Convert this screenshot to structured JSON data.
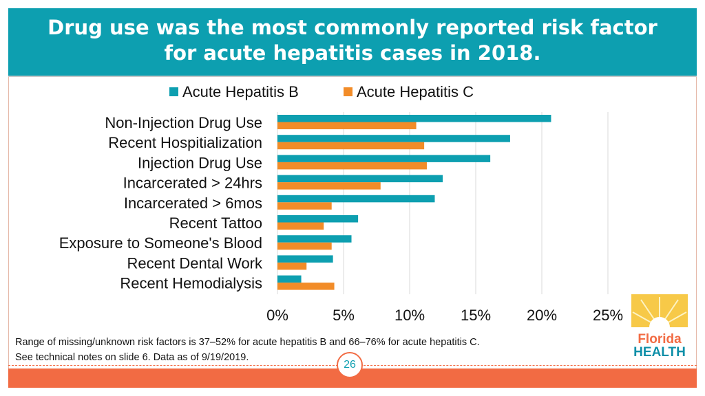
{
  "title": "Drug use was the most commonly reported risk factor for acute hepatitis cases in 2018.",
  "chart_data": {
    "type": "bar",
    "orientation": "horizontal",
    "categories": [
      "Non-Injection Drug Use",
      "Recent Hospitialization",
      "Injection Drug Use",
      "Incarcerated > 24hrs",
      "Incarcerated > 6mos",
      "Recent Tattoo",
      "Exposure to Someone's Blood",
      "Recent Dental Work",
      "Recent Hemodialysis"
    ],
    "series": [
      {
        "name": "Acute Hepatitis B",
        "color": "#0d9fb0",
        "values": [
          20.7,
          17.6,
          16.1,
          12.5,
          11.9,
          6.1,
          5.6,
          4.2,
          1.8
        ]
      },
      {
        "name": "Acute Hepatitis C",
        "color": "#f28c28",
        "values": [
          10.5,
          11.1,
          11.3,
          7.8,
          4.1,
          3.5,
          4.1,
          2.2,
          4.3
        ]
      }
    ],
    "xticks": [
      "0%",
      "5%",
      "10%",
      "15%",
      "20%",
      "25%"
    ],
    "xlim": [
      0,
      25
    ],
    "grid": true,
    "legend_position": "top-center"
  },
  "footnote": {
    "line1": "Range of missing/unknown risk factors is 37–52% for acute hepatitis B and 66–76% for acute hepatitis C.",
    "line2": "See technical notes on slide 6. Data as of 9/19/2019."
  },
  "page_number": "26",
  "logo": {
    "line1": "Florida",
    "line2": "HEALTH"
  },
  "colors": {
    "accent": "#0d9fb0",
    "hep_b": "#0d9fb0",
    "hep_c": "#f28c28",
    "bottom_bar": "#f26b43"
  }
}
